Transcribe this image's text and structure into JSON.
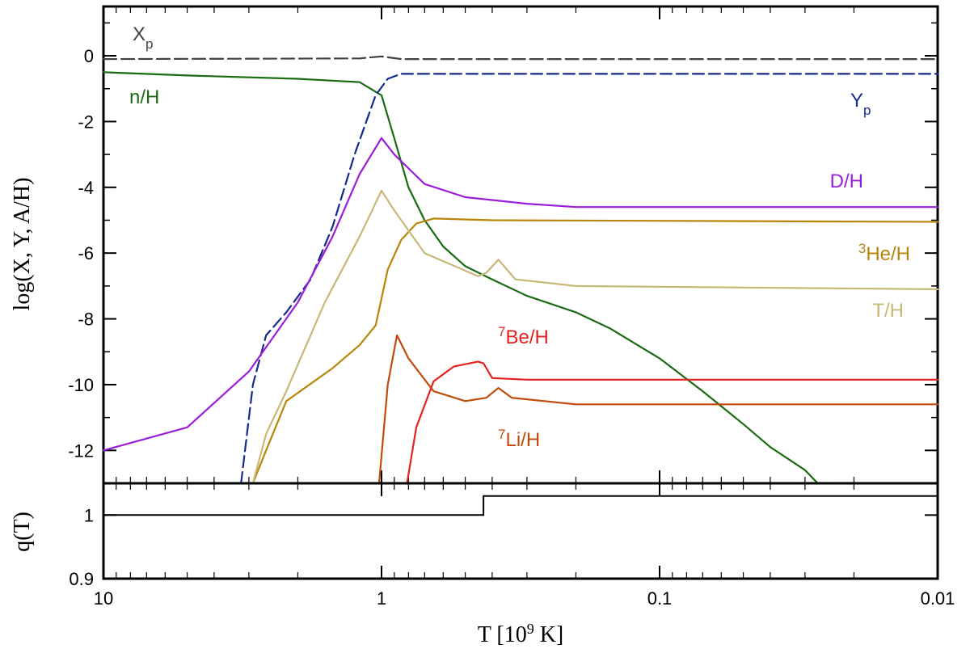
{
  "chart_data": [
    {
      "panel": "top",
      "type": "line",
      "x_scale": "log",
      "x_reversed": true,
      "xlim": [
        10,
        0.01
      ],
      "ylim": [
        -13,
        1.5
      ],
      "ylabel": "log(X, Y, A/H)",
      "y_ticks": [
        0,
        -2,
        -4,
        -6,
        -8,
        -10,
        -12
      ],
      "series": [
        {
          "name": "X_p",
          "label_main": "X",
          "label_sub": "p",
          "color": "#404040",
          "dash": "16 6",
          "points": [
            [
              10,
              -0.1
            ],
            [
              1.2,
              -0.08
            ],
            [
              1.0,
              -0.02
            ],
            [
              0.85,
              -0.1
            ],
            [
              0.01,
              -0.1
            ]
          ]
        },
        {
          "name": "n/H",
          "label_main": "n/H",
          "color": "#1a6b12",
          "dash": "",
          "points": [
            [
              10,
              -0.5
            ],
            [
              5,
              -0.6
            ],
            [
              2,
              -0.7
            ],
            [
              1.2,
              -0.8
            ],
            [
              1.0,
              -1.2
            ],
            [
              0.9,
              -2.5
            ],
            [
              0.8,
              -4.0
            ],
            [
              0.7,
              -5.0
            ],
            [
              0.6,
              -5.8
            ],
            [
              0.5,
              -6.4
            ],
            [
              0.4,
              -6.8
            ],
            [
              0.3,
              -7.3
            ],
            [
              0.2,
              -7.8
            ],
            [
              0.15,
              -8.3
            ],
            [
              0.1,
              -9.2
            ],
            [
              0.07,
              -10.2
            ],
            [
              0.05,
              -11.2
            ],
            [
              0.04,
              -11.9
            ],
            [
              0.03,
              -12.6
            ],
            [
              0.027,
              -13.0
            ]
          ]
        },
        {
          "name": "Y_p",
          "label_main": "Y",
          "label_sub": "p",
          "color": "#142a8c",
          "dash": "14 6",
          "points": [
            [
              3.2,
              -13.0
            ],
            [
              2.9,
              -10.0
            ],
            [
              2.6,
              -8.5
            ],
            [
              2.2,
              -7.8
            ],
            [
              1.8,
              -6.8
            ],
            [
              1.5,
              -5.2
            ],
            [
              1.25,
              -3.0
            ],
            [
              1.05,
              -1.2
            ],
            [
              0.95,
              -0.7
            ],
            [
              0.85,
              -0.55
            ],
            [
              0.01,
              -0.55
            ]
          ]
        },
        {
          "name": "D/H",
          "label_main": "D/H",
          "color": "#9a1ed8",
          "dash": "",
          "points": [
            [
              10,
              -12.0
            ],
            [
              5,
              -11.3
            ],
            [
              3,
              -9.6
            ],
            [
              2,
              -7.5
            ],
            [
              1.5,
              -5.5
            ],
            [
              1.2,
              -3.6
            ],
            [
              1.0,
              -2.5
            ],
            [
              0.9,
              -3.0
            ],
            [
              0.7,
              -3.9
            ],
            [
              0.5,
              -4.3
            ],
            [
              0.3,
              -4.5
            ],
            [
              0.2,
              -4.6
            ],
            [
              0.01,
              -4.6
            ]
          ]
        },
        {
          "name": "3He/H",
          "label_sup": "3",
          "label_main": "He/H",
          "color": "#b8860b",
          "dash": "",
          "points": [
            [
              2.9,
              -13.0
            ],
            [
              2.6,
              -12.0
            ],
            [
              2.2,
              -10.5
            ],
            [
              1.5,
              -9.5
            ],
            [
              1.2,
              -8.8
            ],
            [
              1.05,
              -8.2
            ],
            [
              0.95,
              -6.5
            ],
            [
              0.85,
              -5.6
            ],
            [
              0.75,
              -5.1
            ],
            [
              0.65,
              -4.95
            ],
            [
              0.4,
              -5.0
            ],
            [
              0.01,
              -5.05
            ]
          ]
        },
        {
          "name": "T/H",
          "label_main": "T/H",
          "color": "#c8b878",
          "dash": "",
          "points": [
            [
              2.9,
              -13.0
            ],
            [
              2.6,
              -11.5
            ],
            [
              2.2,
              -10.2
            ],
            [
              1.6,
              -7.5
            ],
            [
              1.2,
              -5.5
            ],
            [
              1.0,
              -4.1
            ],
            [
              0.9,
              -4.7
            ],
            [
              0.7,
              -6.0
            ],
            [
              0.45,
              -6.7
            ],
            [
              0.42,
              -6.6
            ],
            [
              0.38,
              -6.2
            ],
            [
              0.33,
              -6.8
            ],
            [
              0.2,
              -7.0
            ],
            [
              0.01,
              -7.1
            ]
          ]
        },
        {
          "name": "7Be/H",
          "label_sup": "7",
          "label_main": "Be/H",
          "color": "#e62020",
          "dash": "",
          "points": [
            [
              0.81,
              -13.0
            ],
            [
              0.75,
              -11.3
            ],
            [
              0.65,
              -9.9
            ],
            [
              0.55,
              -9.45
            ],
            [
              0.45,
              -9.3
            ],
            [
              0.43,
              -9.35
            ],
            [
              0.4,
              -9.8
            ],
            [
              0.3,
              -9.85
            ],
            [
              0.01,
              -9.85
            ]
          ]
        },
        {
          "name": "7Li/H",
          "label_sup": "7",
          "label_main": "Li/H",
          "color": "#c24a0a",
          "dash": "",
          "points": [
            [
              1.02,
              -13.0
            ],
            [
              0.95,
              -10.0
            ],
            [
              0.88,
              -8.5
            ],
            [
              0.8,
              -9.2
            ],
            [
              0.65,
              -10.2
            ],
            [
              0.5,
              -10.5
            ],
            [
              0.42,
              -10.4
            ],
            [
              0.38,
              -10.1
            ],
            [
              0.34,
              -10.4
            ],
            [
              0.2,
              -10.6
            ],
            [
              0.01,
              -10.6
            ]
          ]
        },
        {
          "name": "q(T)",
          "label_main": "q(T)",
          "color": "#000000",
          "dash": "",
          "points": [
            [
              10,
              1.0
            ],
            [
              0.43,
              1.0
            ],
            [
              0.43,
              1.03
            ],
            [
              0.01,
              1.03
            ]
          ]
        }
      ],
      "annotations": [
        "n/H",
        "X_p",
        "Y_p",
        "D/H",
        "3He/H",
        "T/H",
        "7Be/H",
        "7Li/H"
      ]
    },
    {
      "panel": "bottom",
      "type": "line",
      "x_scale": "log",
      "x_reversed": true,
      "xlim": [
        10,
        0.01
      ],
      "ylim": [
        0.9,
        1.05
      ],
      "ylabel": "q(T)",
      "y_ticks": [
        "1",
        "0.9"
      ],
      "y_tick_values": [
        1.0,
        0.9
      ],
      "xlabel": "T [10",
      "xlabel_sup": "9",
      "xlabel_rest": " K]",
      "x_ticks": [
        "10",
        "1",
        "0.1",
        "0.01"
      ],
      "x_tick_values": [
        10,
        1,
        0.1,
        0.01
      ]
    }
  ]
}
